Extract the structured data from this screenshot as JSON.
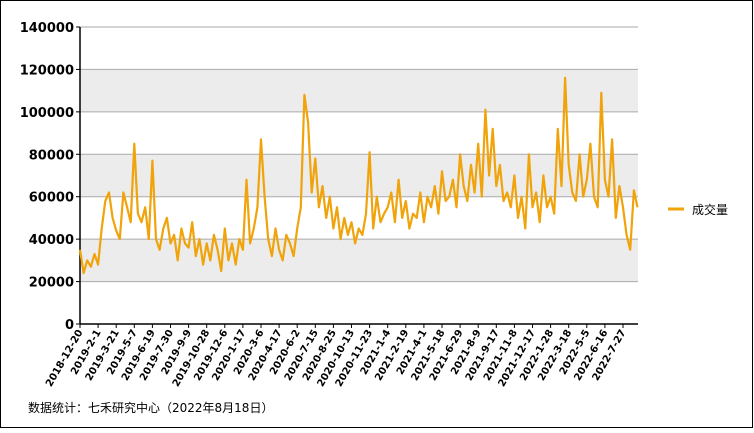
{
  "chart_data": {
    "type": "line",
    "categories": [
      "2018-12-20",
      null,
      null,
      null,
      null,
      "2019-2-1",
      null,
      null,
      null,
      null,
      "2019-3-21",
      null,
      null,
      null,
      null,
      "2019-5-7",
      null,
      null,
      null,
      null,
      "2019-6-19",
      null,
      null,
      null,
      null,
      "2019-7-30",
      null,
      null,
      null,
      null,
      "2019-9-9",
      null,
      null,
      null,
      null,
      "2019-10-28",
      null,
      null,
      null,
      null,
      "2019-12-6",
      null,
      null,
      null,
      null,
      "2020-1-17",
      null,
      null,
      null,
      null,
      "2020-3-6",
      null,
      null,
      null,
      null,
      "2020-4-17",
      null,
      null,
      null,
      null,
      "2020-6-2",
      null,
      null,
      null,
      null,
      "2020-7-15",
      null,
      null,
      null,
      null,
      "2020-8-25",
      null,
      null,
      null,
      null,
      "2020-10-13",
      null,
      null,
      null,
      null,
      "2020-11-23",
      null,
      null,
      null,
      null,
      "2021-1-4",
      null,
      null,
      null,
      null,
      "2021-2-19",
      null,
      null,
      null,
      null,
      "2021-4-1",
      null,
      null,
      null,
      null,
      "2021-5-18",
      null,
      null,
      null,
      null,
      "2021-6-29",
      null,
      null,
      null,
      null,
      "2021-8-9",
      null,
      null,
      null,
      null,
      "2021-9-17",
      null,
      null,
      null,
      null,
      "2021-11-8",
      null,
      null,
      null,
      null,
      "2021-12-17",
      null,
      null,
      null,
      null,
      "2022-1-28",
      null,
      null,
      null,
      null,
      "2022-3-18",
      null,
      null,
      null,
      null,
      "2022-5-5",
      null,
      null,
      null,
      null,
      "2022-6-16",
      null,
      null,
      null,
      null,
      "2022-7-27",
      null,
      null,
      null,
      null
    ],
    "series": [
      {
        "name": "成交量",
        "color": "#f0a30a",
        "values": [
          35000,
          24000,
          30000,
          27000,
          33000,
          28000,
          45000,
          58000,
          62000,
          50000,
          44000,
          40000,
          62000,
          55000,
          48000,
          85000,
          52000,
          48000,
          55000,
          40000,
          77000,
          40000,
          35000,
          45000,
          50000,
          38000,
          42000,
          30000,
          45000,
          38000,
          36000,
          48000,
          32000,
          40000,
          28000,
          38000,
          30000,
          42000,
          35000,
          25000,
          45000,
          30000,
          38000,
          28000,
          40000,
          35000,
          68000,
          38000,
          45000,
          55000,
          87000,
          60000,
          40000,
          32000,
          45000,
          35000,
          30000,
          42000,
          38000,
          32000,
          45000,
          55000,
          108000,
          95000,
          62000,
          78000,
          55000,
          65000,
          50000,
          60000,
          45000,
          55000,
          40000,
          50000,
          42000,
          48000,
          38000,
          45000,
          42000,
          52000,
          81000,
          45000,
          60000,
          48000,
          52000,
          55000,
          62000,
          48000,
          68000,
          50000,
          58000,
          45000,
          52000,
          50000,
          62000,
          48000,
          60000,
          55000,
          65000,
          52000,
          72000,
          58000,
          60000,
          68000,
          55000,
          80000,
          65000,
          58000,
          75000,
          62000,
          85000,
          60000,
          101000,
          70000,
          92000,
          65000,
          75000,
          58000,
          62000,
          55000,
          70000,
          50000,
          60000,
          45000,
          80000,
          55000,
          62000,
          48000,
          70000,
          55000,
          60000,
          52000,
          92000,
          65000,
          116000,
          75000,
          62000,
          58000,
          80000,
          60000,
          68000,
          85000,
          60000,
          55000,
          109000,
          68000,
          60000,
          87000,
          50000,
          65000,
          55000,
          42000,
          35000,
          63000,
          55000
        ]
      }
    ],
    "ylim": [
      0,
      140000
    ],
    "yticks": [
      0,
      20000,
      40000,
      60000,
      80000,
      100000,
      120000,
      140000
    ],
    "grid": true,
    "legend": "right",
    "note": "数据统计：七禾研究中心（2022年8月18日）"
  }
}
